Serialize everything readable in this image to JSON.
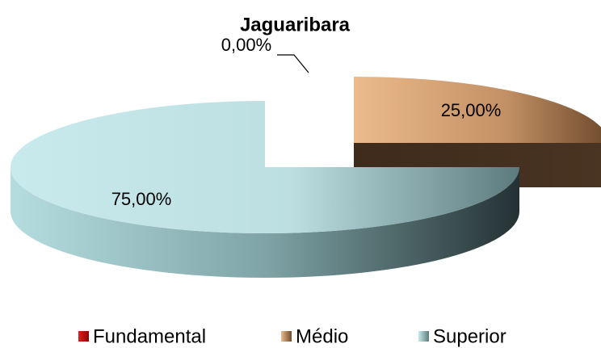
{
  "chart_data": {
    "type": "pie3d",
    "title": "Jaguaribara",
    "categories": [
      "Fundamental",
      "Médio",
      "Superior"
    ],
    "values": [
      0,
      25,
      75
    ],
    "value_labels": [
      "0,00%",
      "25,00%",
      "75,00%"
    ],
    "colors": [
      "#c00000",
      "#d9a26f",
      "#bfe3e6"
    ],
    "legend": "bottom"
  }
}
